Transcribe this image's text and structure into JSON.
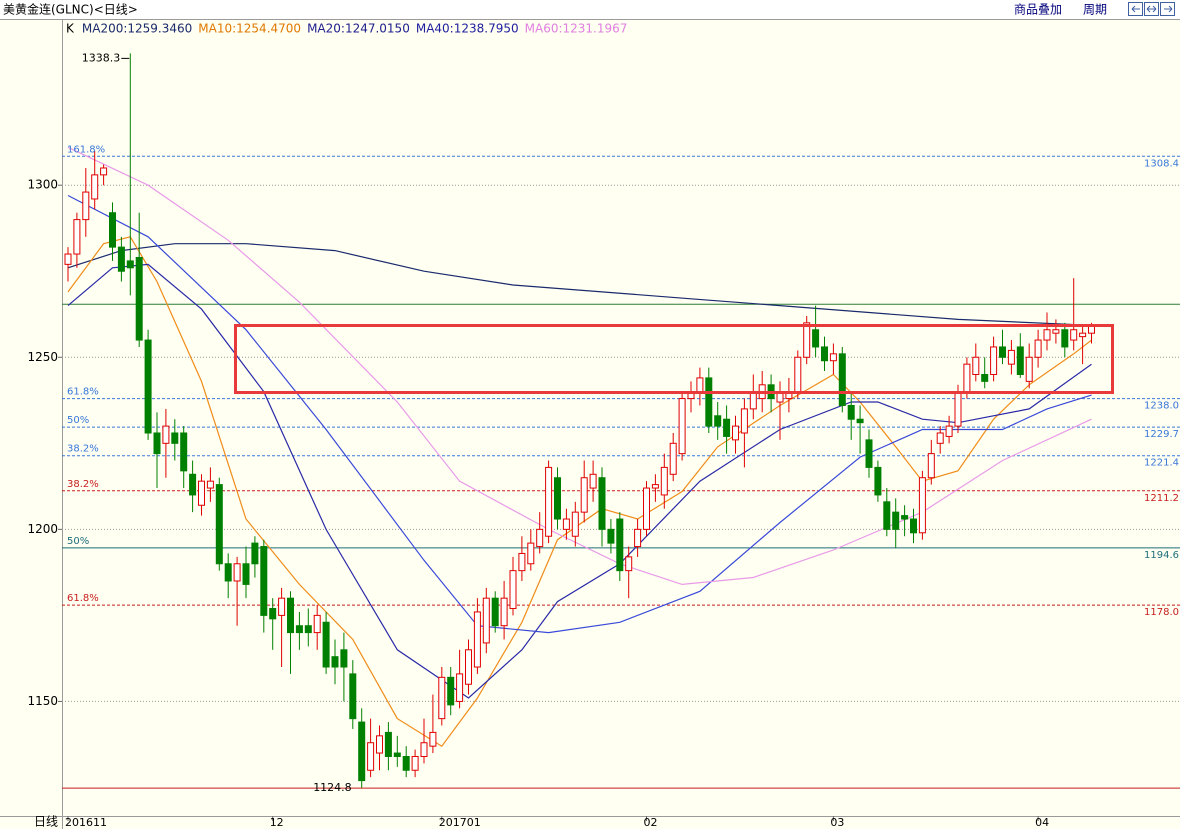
{
  "chart_data": {
    "type": "candlestick",
    "title": "美黄金连(GLNC)<日线>",
    "toolbar": [
      "商品叠加",
      "周期"
    ],
    "period_label": "日线",
    "candle_label": "K",
    "ylim": [
      1117,
      1348
    ],
    "yticks": [
      1300,
      1250,
      1200,
      1150
    ],
    "grid": true,
    "xticks": [
      {
        "value": 0,
        "label": "201611"
      },
      {
        "value": 23,
        "label": "12"
      },
      {
        "value": 42,
        "label": "201701"
      },
      {
        "value": 65,
        "label": "02"
      },
      {
        "value": 86,
        "label": "03"
      },
      {
        "value": 109,
        "label": "04"
      }
    ],
    "up_color": "#e00000",
    "down_color": "#008000",
    "candles": {
      "open": [
        1277,
        1280,
        1290,
        1296,
        1303,
        1292,
        1282,
        1278,
        1279,
        1255,
        1228,
        1225,
        1228,
        1228,
        1216,
        1207,
        1212,
        1213,
        1190,
        1185,
        1190,
        1196,
        1195,
        1177,
        1175,
        1180,
        1172,
        1172,
        1170,
        1173,
        1163,
        1165,
        1158,
        1144,
        1130,
        1135,
        1141,
        1135,
        1134,
        1130,
        1134,
        1137,
        1145,
        1157,
        1150,
        1155,
        1160,
        1167,
        1180,
        1172,
        1177,
        1188,
        1190,
        1195,
        1198,
        1215,
        1200,
        1198,
        1205,
        1212,
        1215,
        1200,
        1203,
        1188,
        1195,
        1200,
        1212,
        1210,
        1216,
        1222,
        1238,
        1240,
        1244,
        1233,
        1232,
        1226,
        1228,
        1235,
        1238,
        1242,
        1237,
        1238,
        1240,
        1250,
        1258,
        1253,
        1249,
        1251,
        1236,
        1232,
        1226,
        1218,
        1208,
        1205,
        1204,
        1203,
        1199,
        1215,
        1225,
        1227,
        1230,
        1240,
        1245,
        1245,
        1245,
        1253,
        1248,
        1253,
        1243,
        1250,
        1255,
        1257,
        1258,
        1255,
        1256,
        1257
      ],
      "high": [
        1282,
        1292,
        1305,
        1310,
        1306,
        1295,
        1285,
        1338.3,
        1292,
        1258,
        1234,
        1235,
        1232,
        1230,
        1220,
        1216,
        1218,
        1215,
        1193,
        1192,
        1195,
        1198,
        1197,
        1180,
        1183,
        1182,
        1176,
        1177,
        1178,
        1176,
        1168,
        1170,
        1162,
        1148,
        1145,
        1143,
        1144,
        1140,
        1137,
        1136,
        1145,
        1152,
        1160,
        1160,
        1165,
        1168,
        1180,
        1183,
        1182,
        1185,
        1192,
        1198,
        1200,
        1205,
        1220,
        1218,
        1206,
        1208,
        1220,
        1220,
        1218,
        1203,
        1205,
        1195,
        1203,
        1214,
        1216,
        1222,
        1228,
        1240,
        1243,
        1247,
        1247,
        1237,
        1236,
        1233,
        1238,
        1245,
        1246,
        1245,
        1243,
        1244,
        1252,
        1262,
        1265,
        1256,
        1254,
        1253,
        1240,
        1236,
        1229,
        1220,
        1212,
        1209,
        1207,
        1206,
        1217,
        1226,
        1230,
        1233,
        1242,
        1250,
        1254,
        1250,
        1256,
        1258,
        1255,
        1257,
        1254,
        1258,
        1263,
        1261,
        1260,
        1273,
        1259,
        1260
      ],
      "low": [
        1272,
        1276,
        1285,
        1293,
        1300,
        1278,
        1272,
        1268,
        1253,
        1226,
        1212,
        1215,
        1220,
        1212,
        1205,
        1204,
        1208,
        1188,
        1180,
        1172,
        1180,
        1186,
        1170,
        1165,
        1160,
        1158,
        1165,
        1166,
        1165,
        1158,
        1155,
        1150,
        1142,
        1124.8,
        1128,
        1130,
        1130,
        1131,
        1128,
        1128,
        1132,
        1135,
        1143,
        1146,
        1148,
        1152,
        1158,
        1164,
        1170,
        1168,
        1175,
        1185,
        1188,
        1193,
        1196,
        1200,
        1197,
        1195,
        1202,
        1208,
        1195,
        1193,
        1185,
        1180,
        1192,
        1198,
        1208,
        1206,
        1214,
        1220,
        1234,
        1236,
        1228,
        1226,
        1222,
        1222,
        1218,
        1232,
        1234,
        1234,
        1226,
        1234,
        1238,
        1248,
        1250,
        1246,
        1245,
        1234,
        1226,
        1222,
        1215,
        1208,
        1198,
        1194.6,
        1198,
        1196,
        1197,
        1213,
        1222,
        1225,
        1228,
        1238,
        1243,
        1241,
        1243,
        1248,
        1245,
        1244,
        1241,
        1247,
        1252,
        1254,
        1250,
        1252,
        1248,
        1254
      ],
      "close": [
        1280,
        1290,
        1298,
        1303,
        1305,
        1282,
        1275,
        1276,
        1255,
        1228,
        1222,
        1230,
        1225,
        1217,
        1210,
        1214,
        1214,
        1190,
        1185,
        1190,
        1184,
        1190,
        1175,
        1174,
        1180,
        1170,
        1170,
        1170,
        1175,
        1160,
        1160,
        1160,
        1145,
        1127,
        1138,
        1140,
        1134,
        1134,
        1130,
        1134,
        1138,
        1141,
        1157,
        1149,
        1158,
        1165,
        1176,
        1180,
        1172,
        1180,
        1188,
        1193,
        1196,
        1200,
        1218,
        1203,
        1203,
        1205,
        1215,
        1216,
        1200,
        1196,
        1188,
        1192,
        1200,
        1212,
        1213,
        1218,
        1225,
        1238,
        1240,
        1244,
        1230,
        1230,
        1227,
        1230,
        1235,
        1240,
        1242,
        1238,
        1240,
        1240,
        1250,
        1260,
        1253,
        1249,
        1251,
        1236,
        1232,
        1231,
        1218,
        1210,
        1200,
        1200,
        1203,
        1199,
        1215,
        1222,
        1228,
        1230,
        1240,
        1248,
        1250,
        1243,
        1253,
        1250,
        1252,
        1245,
        1250,
        1255,
        1258,
        1258,
        1253,
        1258,
        1257,
        1259
      ]
    },
    "ma": [
      {
        "name": "MA200:1259.3460",
        "color": "#1a2a6c",
        "legend_color": "#1a2a6c",
        "x": [
          0,
          6,
          12,
          20,
          30,
          40,
          50,
          60,
          70,
          80,
          90,
          100,
          115
        ],
        "values": [
          1276,
          1281,
          1283,
          1283,
          1281,
          1275,
          1271,
          1269,
          1267,
          1265,
          1263,
          1261,
          1259.3
        ]
      },
      {
        "name": "MA10:1254.4700",
        "color": "#f08c1a",
        "legend_color": "#e07800",
        "x": [
          0,
          4,
          7,
          10,
          15,
          20,
          26,
          32,
          37,
          42,
          46,
          51,
          55,
          60,
          64,
          69,
          73,
          80,
          86,
          89,
          93,
          96,
          100,
          104,
          108,
          113,
          115
        ],
        "values": [
          1269,
          1283,
          1285,
          1272,
          1243,
          1203,
          1184,
          1168,
          1145,
          1137,
          1151,
          1173,
          1197,
          1206,
          1203,
          1211,
          1224,
          1236,
          1245,
          1237,
          1224,
          1214,
          1217,
          1232,
          1242,
          1251,
          1255
        ]
      },
      {
        "name": "MA20:1247.0150",
        "color": "#2a2aa8",
        "legend_color": "#202090",
        "x": [
          0,
          5,
          9,
          15,
          22,
          29,
          37,
          45,
          51,
          55,
          62,
          71,
          80,
          88,
          91,
          96,
          100,
          108,
          115
        ],
        "values": [
          1265,
          1276,
          1277,
          1264,
          1240,
          1200,
          1165,
          1151,
          1165,
          1179,
          1190,
          1214,
          1229,
          1237,
          1237,
          1232,
          1231,
          1235,
          1248
        ]
      },
      {
        "name": "MA40:1238.7950",
        "color": "#3a4ad8",
        "legend_color": "#2020a0",
        "x": [
          0,
          9,
          20,
          29,
          40,
          46,
          54,
          62,
          71,
          80,
          89,
          96,
          105,
          110,
          115
        ],
        "values": [
          1297,
          1285,
          1258,
          1229,
          1191,
          1172,
          1170,
          1173,
          1182,
          1202,
          1221,
          1229,
          1229,
          1235,
          1239
        ]
      },
      {
        "name": "MA60:1231.1967",
        "color": "#e89ae8",
        "legend_color": "#e080e0",
        "x": [
          0,
          9,
          18,
          26,
          37,
          44,
          54,
          62,
          69,
          77,
          86,
          96,
          105,
          115
        ],
        "values": [
          1311,
          1300,
          1284,
          1266,
          1237,
          1214,
          1200,
          1190,
          1184,
          1186,
          1194,
          1205,
          1220,
          1232
        ]
      }
    ],
    "levels": [
      {
        "value": 1308.4,
        "label": "1308.4",
        "pct": "161.8%",
        "color": "#3a78d8",
        "style": "dashed"
      },
      {
        "value": 1265.4,
        "color": "#2e7d32",
        "style": "solid"
      },
      {
        "value": 1238.0,
        "label": "1238.0",
        "pct": "61.8%",
        "color": "#3a78d8",
        "style": "dashed"
      },
      {
        "value": 1229.7,
        "label": "1229.7",
        "pct": "50%",
        "color": "#3a78d8",
        "style": "dashed"
      },
      {
        "value": 1221.4,
        "label": "1221.4",
        "pct": "38.2%",
        "color": "#3a78d8",
        "style": "dashed"
      },
      {
        "value": 1211.2,
        "label": "1211.2",
        "pct": "38.2%",
        "color": "#c81e1e",
        "style": "dashed"
      },
      {
        "value": 1194.6,
        "label": "1194.6",
        "pct": "50%",
        "color": "#1e6e7a",
        "style": "solid"
      },
      {
        "value": 1178.0,
        "label": "1178.0",
        "pct": "61.8%",
        "color": "#c81e1e",
        "style": "dashed"
      }
    ]
  }
}
